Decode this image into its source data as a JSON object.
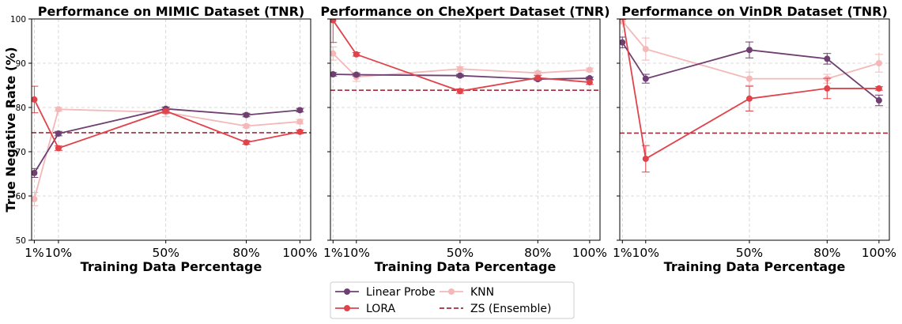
{
  "ylabel": "True Negative Rate (%)",
  "legend": [
    {
      "label": "Linear Probe",
      "color": "#6f3f72",
      "style": "line-marker"
    },
    {
      "label": "LORA",
      "color": "#e0434a",
      "style": "line-marker"
    },
    {
      "label": "KNN",
      "color": "#f4b8b8",
      "style": "line-marker"
    },
    {
      "label": "ZS (Ensemble)",
      "color": "#a02c3c",
      "style": "dashed"
    }
  ],
  "chart_data": [
    {
      "type": "line",
      "title": "Performance on MIMIC Dataset (TNR)",
      "xlabel": "Training Data Percentage",
      "x": [
        1,
        10,
        50,
        80,
        100
      ],
      "xticklabels": [
        "1%",
        "10%",
        "50%",
        "80%",
        "100%"
      ],
      "ylim": [
        50,
        100
      ],
      "yticks": [
        50,
        60,
        70,
        80,
        90,
        100
      ],
      "grid": true,
      "series": [
        {
          "name": "Linear Probe",
          "values": [
            65.2,
            74.1,
            79.7,
            78.3,
            79.4
          ],
          "errors": [
            1.0,
            0.5,
            0.4,
            0.4,
            0.4
          ]
        },
        {
          "name": "LORA",
          "values": [
            81.8,
            70.8,
            79.2,
            72.1,
            74.5
          ],
          "errors": [
            3.0,
            0.5,
            0.5,
            0.4,
            0.4
          ]
        },
        {
          "name": "KNN",
          "values": [
            59.3,
            79.6,
            78.9,
            75.8,
            76.8
          ],
          "errors": [
            1.5,
            0.4,
            1.0,
            0.4,
            0.5
          ]
        }
      ],
      "reference_line": {
        "name": "ZS (Ensemble)",
        "value": 74.3
      }
    },
    {
      "type": "line",
      "title": "Performance on CheXpert Dataset (TNR)",
      "xlabel": "Training Data Percentage",
      "x": [
        1,
        10,
        50,
        80,
        100
      ],
      "xticklabels": [
        "1%",
        "10%",
        "50%",
        "80%",
        "100%"
      ],
      "ylim": [
        50,
        100
      ],
      "yticks": [
        50,
        60,
        70,
        80,
        90,
        100
      ],
      "grid": true,
      "series": [
        {
          "name": "Linear Probe",
          "values": [
            87.5,
            87.4,
            87.2,
            86.4,
            86.6
          ],
          "errors": [
            0.4,
            0.3,
            0.3,
            0.3,
            0.3
          ]
        },
        {
          "name": "LORA",
          "values": [
            99.7,
            92.0,
            83.7,
            86.7,
            85.7
          ],
          "errors": [
            5.0,
            0.4,
            0.5,
            0.5,
            0.5
          ]
        },
        {
          "name": "KNN",
          "values": [
            92.2,
            86.9,
            88.7,
            87.8,
            88.5
          ],
          "errors": [
            1.5,
            1.0,
            0.5,
            0.4,
            0.4
          ]
        }
      ],
      "reference_line": {
        "name": "ZS (Ensemble)",
        "value": 83.9
      }
    },
    {
      "type": "line",
      "title": "Performance on VinDR Dataset (TNR)",
      "xlabel": "Training Data Percentage",
      "x": [
        1,
        10,
        50,
        80,
        100
      ],
      "xticklabels": [
        "1%",
        "10%",
        "50%",
        "80%",
        "100%"
      ],
      "ylim": [
        50,
        100
      ],
      "yticks": [
        50,
        60,
        70,
        80,
        90,
        100
      ],
      "grid": true,
      "series": [
        {
          "name": "Linear Probe",
          "values": [
            94.7,
            86.5,
            93.0,
            91.0,
            81.6
          ],
          "errors": [
            1.2,
            1.0,
            1.8,
            1.2,
            1.2
          ]
        },
        {
          "name": "LORA",
          "values": [
            100.5,
            68.4,
            82.0,
            84.3,
            84.3
          ],
          "errors": [
            0.6,
            3.0,
            2.8,
            2.3,
            0.4
          ]
        },
        {
          "name": "KNN",
          "values": [
            99.5,
            93.2,
            86.5,
            86.5,
            90.0
          ],
          "errors": [
            0.6,
            2.5,
            1.5,
            1.0,
            2.0
          ]
        }
      ],
      "reference_line": {
        "name": "ZS (Ensemble)",
        "value": 74.2
      }
    }
  ]
}
